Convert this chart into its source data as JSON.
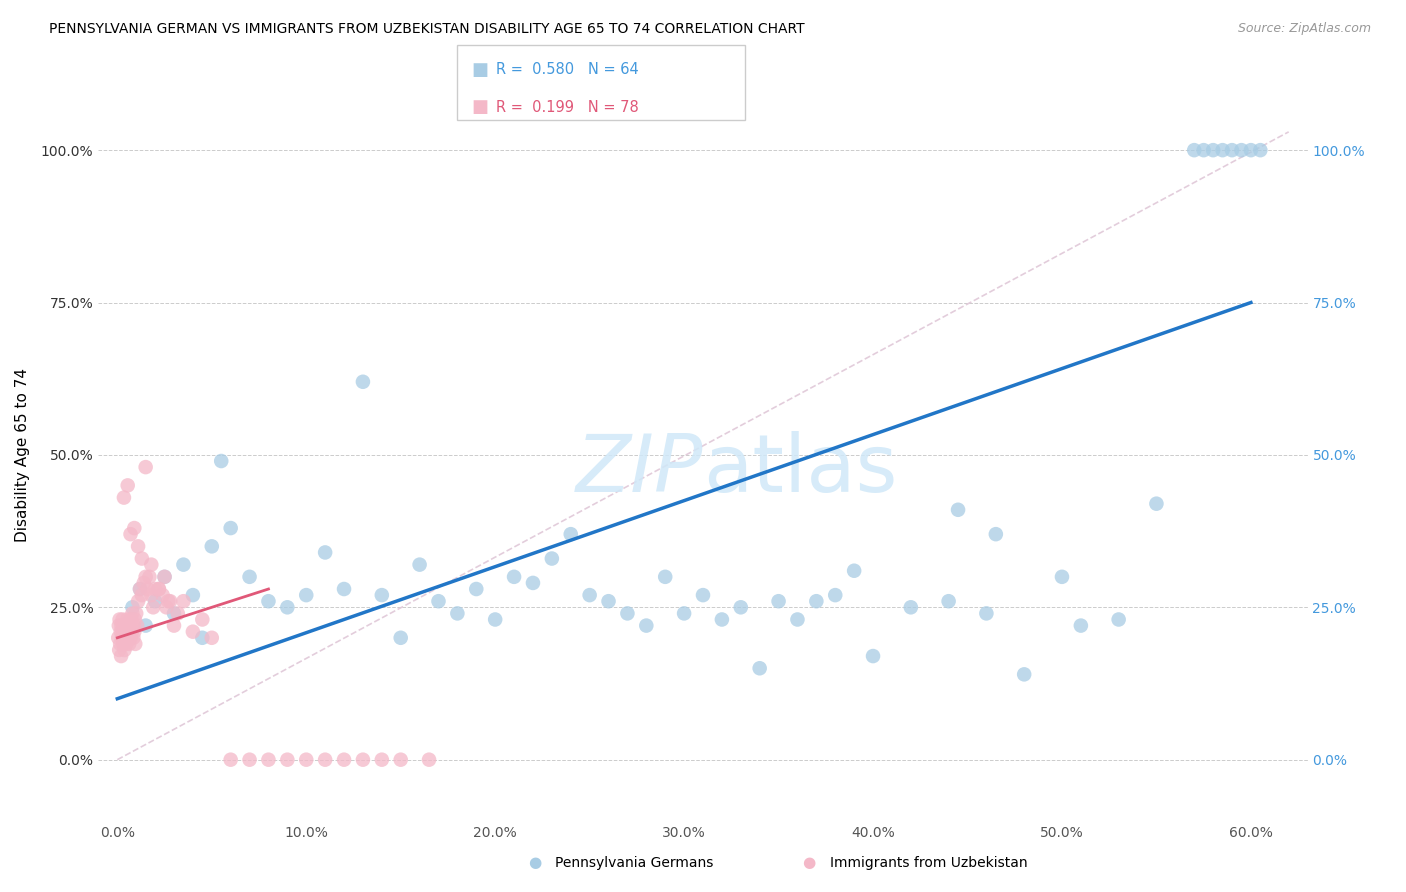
{
  "title": "PENNSYLVANIA GERMAN VS IMMIGRANTS FROM UZBEKISTAN DISABILITY AGE 65 TO 74 CORRELATION CHART",
  "source": "Source: ZipAtlas.com",
  "ylabel": "Disability Age 65 to 74",
  "x_tick_labels": [
    "0.0%",
    "10.0%",
    "20.0%",
    "30.0%",
    "40.0%",
    "50.0%",
    "60.0%"
  ],
  "x_tick_vals": [
    0,
    10,
    20,
    30,
    40,
    50,
    60
  ],
  "y_tick_labels": [
    "0.0%",
    "25.0%",
    "50.0%",
    "75.0%",
    "100.0%"
  ],
  "y_tick_vals": [
    0,
    25,
    50,
    75,
    100
  ],
  "xlim": [
    -1,
    63
  ],
  "ylim": [
    -10,
    110
  ],
  "legend_R": [
    0.58,
    0.199
  ],
  "legend_N": [
    64,
    78
  ],
  "blue_color": "#a8cce4",
  "pink_color": "#f4b8c8",
  "blue_line_color": "#2176c7",
  "pink_line_color": "#e05878",
  "diag_color": "#e0c8d8",
  "watermark_color": "#d0e8f8",
  "blue_x": [
    0.8,
    1.2,
    1.5,
    2.0,
    2.5,
    3.0,
    3.5,
    4.0,
    4.5,
    5.0,
    5.5,
    6.0,
    7.0,
    8.0,
    9.0,
    10.0,
    11.0,
    12.0,
    13.0,
    14.0,
    15.0,
    16.0,
    17.0,
    18.0,
    19.0,
    20.0,
    21.0,
    22.0,
    23.0,
    24.0,
    25.0,
    26.0,
    27.0,
    28.0,
    29.0,
    30.0,
    31.0,
    32.0,
    33.0,
    34.0,
    35.0,
    36.0,
    37.0,
    38.0,
    39.0,
    40.0,
    42.0,
    44.0,
    46.0,
    48.0,
    50.0,
    55.0,
    57.0,
    58.5,
    59.0,
    60.0,
    57.5,
    59.5,
    58.0,
    60.5,
    44.5,
    46.5,
    51.0,
    53.0
  ],
  "blue_y": [
    25,
    28,
    22,
    26,
    30,
    24,
    32,
    27,
    20,
    35,
    49,
    38,
    30,
    26,
    25,
    27,
    34,
    28,
    62,
    27,
    20,
    32,
    26,
    24,
    28,
    23,
    30,
    29,
    33,
    37,
    27,
    26,
    24,
    22,
    30,
    24,
    27,
    23,
    25,
    15,
    26,
    23,
    26,
    27,
    31,
    17,
    25,
    26,
    24,
    14,
    30,
    42,
    100,
    100,
    100,
    100,
    100,
    100,
    100,
    100,
    41,
    37,
    22,
    23
  ],
  "pink_x": [
    0.05,
    0.08,
    0.1,
    0.12,
    0.15,
    0.18,
    0.2,
    0.22,
    0.25,
    0.28,
    0.3,
    0.32,
    0.35,
    0.38,
    0.4,
    0.43,
    0.45,
    0.48,
    0.5,
    0.53,
    0.55,
    0.58,
    0.6,
    0.63,
    0.65,
    0.7,
    0.73,
    0.75,
    0.8,
    0.85,
    0.88,
    0.9,
    0.93,
    0.95,
    1.0,
    1.05,
    1.1,
    1.2,
    1.3,
    1.4,
    1.5,
    1.6,
    1.7,
    1.8,
    1.9,
    2.0,
    2.2,
    2.4,
    2.5,
    2.6,
    2.8,
    3.0,
    3.2,
    3.5,
    4.0,
    4.5,
    5.0,
    6.0,
    7.0,
    8.0,
    9.0,
    10.0,
    11.0,
    12.0,
    13.0,
    14.0,
    15.0,
    16.5,
    0.35,
    0.55,
    0.7,
    0.9,
    1.1,
    1.3,
    1.5,
    1.8,
    2.2,
    2.7
  ],
  "pink_y": [
    20,
    22,
    18,
    23,
    19,
    21,
    17,
    22,
    20,
    23,
    21,
    19,
    22,
    18,
    21,
    20,
    22,
    19,
    21,
    23,
    20,
    22,
    21,
    19,
    22,
    20,
    23,
    21,
    24,
    20,
    22,
    21,
    23,
    19,
    24,
    22,
    26,
    28,
    27,
    29,
    48,
    28,
    30,
    27,
    25,
    28,
    28,
    27,
    30,
    25,
    26,
    22,
    24,
    26,
    21,
    23,
    20,
    0,
    0,
    0,
    0,
    0,
    0,
    0,
    0,
    0,
    0,
    0,
    43,
    45,
    37,
    38,
    35,
    33,
    30,
    32,
    28,
    26
  ],
  "blue_trend_x": [
    0,
    60
  ],
  "blue_trend_y": [
    10,
    75
  ],
  "pink_trend_x": [
    0,
    8
  ],
  "pink_trend_y": [
    20,
    28
  ]
}
